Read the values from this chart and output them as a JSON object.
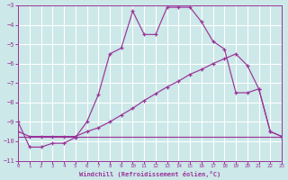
{
  "bg_color": "#cce8e8",
  "grid_color": "#ffffff",
  "line_color": "#993399",
  "xlim": [
    0,
    23
  ],
  "ylim": [
    -11,
    -3
  ],
  "xtick_vals": [
    0,
    1,
    2,
    3,
    4,
    5,
    6,
    7,
    8,
    9,
    10,
    11,
    12,
    13,
    14,
    15,
    16,
    17,
    18,
    19,
    20,
    21,
    22,
    23
  ],
  "ytick_vals": [
    -11,
    -10,
    -9,
    -8,
    -7,
    -6,
    -5,
    -4,
    -3
  ],
  "xlabel": "Windchill (Refroidissement éolien,°C)",
  "curve1_x": [
    0,
    1,
    2,
    3,
    4,
    5,
    6,
    7,
    8,
    9,
    10,
    11,
    12,
    13,
    14,
    15,
    16,
    17,
    18,
    19,
    20,
    21,
    22,
    23
  ],
  "curve1_y": [
    -9.0,
    -10.3,
    -10.3,
    -10.1,
    -10.1,
    -9.8,
    -9.0,
    -7.6,
    -5.5,
    -5.2,
    -3.3,
    -4.5,
    -4.5,
    -3.1,
    -3.1,
    -3.1,
    -3.85,
    -4.85,
    -5.25,
    -7.5,
    -7.5,
    -7.3,
    -9.5,
    -9.75
  ],
  "curve2_x": [
    0,
    1,
    2,
    3,
    4,
    5,
    6,
    7,
    8,
    9,
    10,
    11,
    12,
    13,
    14,
    15,
    16,
    17,
    18,
    19,
    20,
    21,
    22,
    23
  ],
  "curve2_y": [
    -9.5,
    -9.75,
    -9.75,
    -9.75,
    -9.75,
    -9.75,
    -9.5,
    -9.3,
    -9.0,
    -8.65,
    -8.3,
    -7.9,
    -7.55,
    -7.2,
    -6.9,
    -6.55,
    -6.3,
    -6.0,
    -5.75,
    -5.5,
    -6.1,
    -7.3,
    -9.5,
    -9.75
  ],
  "curve3_x": [
    0,
    23
  ],
  "curve3_y": [
    -9.75,
    -9.75
  ]
}
